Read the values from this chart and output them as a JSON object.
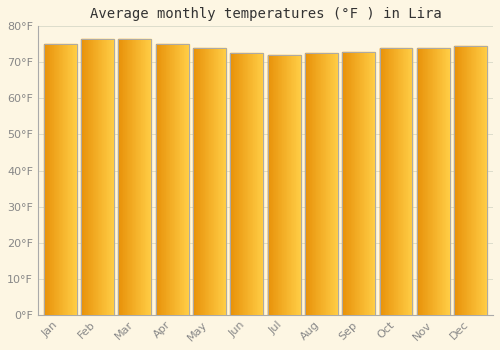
{
  "title": "Average monthly temperatures (°F ) in Lira",
  "months": [
    "Jan",
    "Feb",
    "Mar",
    "Apr",
    "May",
    "Jun",
    "Jul",
    "Aug",
    "Sep",
    "Oct",
    "Nov",
    "Dec"
  ],
  "values": [
    75.0,
    76.5,
    76.5,
    75.0,
    74.0,
    72.5,
    72.0,
    72.5,
    73.0,
    74.0,
    74.0,
    74.5
  ],
  "ylim": [
    0,
    80
  ],
  "yticks": [
    0,
    10,
    20,
    30,
    40,
    50,
    60,
    70,
    80
  ],
  "ytick_labels": [
    "0°F",
    "10°F",
    "20°F",
    "30°F",
    "40°F",
    "50°F",
    "60°F",
    "70°F",
    "80°F"
  ],
  "bar_color_dark": "#E8920A",
  "bar_color_light": "#FFCC44",
  "bar_edge_color": "#AAAAAA",
  "background_color": "#FDF6E3",
  "grid_color": "#DDDDCC",
  "title_fontsize": 10,
  "tick_fontsize": 8,
  "tick_color": "#888888",
  "axis_color": "#AAAAAA",
  "title_color": "#333333",
  "bar_width": 0.88
}
